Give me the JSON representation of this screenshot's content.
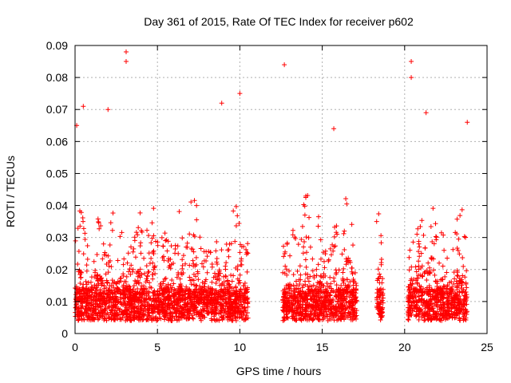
{
  "chart_data": {
    "type": "scatter",
    "title": "Day 361 of 2015, Rate Of TEC Index for receiver p602",
    "xlabel": "GPS time / hours",
    "ylabel": "ROTI / TECUs",
    "xlim": [
      0,
      25
    ],
    "ylim": [
      0,
      0.09
    ],
    "x_ticks": [
      "0",
      "5",
      "10",
      "15",
      "20",
      "25"
    ],
    "y_ticks": [
      "0",
      "0.01",
      "0.02",
      "0.03",
      "0.04",
      "0.05",
      "0.06",
      "0.07",
      "0.08",
      "0.09"
    ],
    "grid": true,
    "marker": "plus",
    "marker_color": "#ff0000",
    "data_segments": [
      {
        "x_start": 0.0,
        "x_end": 10.5
      },
      {
        "x_start": 12.6,
        "x_end": 17.1
      },
      {
        "x_start": 18.3,
        "x_end": 18.7
      },
      {
        "x_start": 20.2,
        "x_end": 23.8
      }
    ],
    "notable_points": [
      {
        "x": 3.1,
        "y": 0.088
      },
      {
        "x": 3.1,
        "y": 0.085
      },
      {
        "x": 12.7,
        "y": 0.084
      },
      {
        "x": 20.4,
        "y": 0.085
      },
      {
        "x": 20.4,
        "y": 0.08
      },
      {
        "x": 0.5,
        "y": 0.071
      },
      {
        "x": 2.0,
        "y": 0.07
      },
      {
        "x": 8.9,
        "y": 0.072
      },
      {
        "x": 10.0,
        "y": 0.075
      },
      {
        "x": 21.3,
        "y": 0.069
      },
      {
        "x": 23.8,
        "y": 0.066
      },
      {
        "x": 15.7,
        "y": 0.064
      },
      {
        "x": 0.1,
        "y": 0.065
      },
      {
        "x": 18.3,
        "y": 0.035
      }
    ]
  }
}
